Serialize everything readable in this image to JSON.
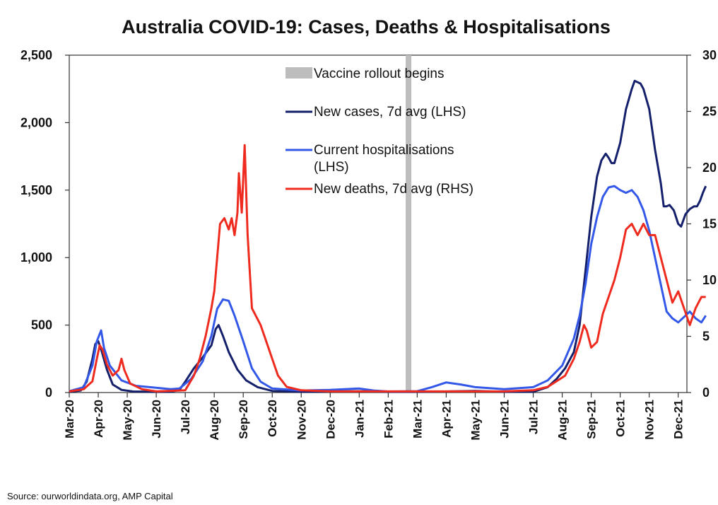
{
  "chart_data": {
    "type": "line",
    "title": "Australia COVID-19: Cases, Deaths & Hospitalisations",
    "xlabel": "",
    "ylabel_left": "",
    "ylabel_right": "",
    "x_categories": [
      "Mar-20",
      "Apr-20",
      "May-20",
      "Jun-20",
      "Jul-20",
      "Aug-20",
      "Sep-20",
      "Oct-20",
      "Nov-20",
      "Dec-20",
      "Jan-21",
      "Feb-21",
      "Mar-21",
      "Apr-21",
      "May-21",
      "Jun-21",
      "Jul-21",
      "Aug-21",
      "Sep-21",
      "Oct-21",
      "Nov-21",
      "Dec-21"
    ],
    "x_range": [
      0,
      21.3
    ],
    "ylim_left": [
      0,
      2500
    ],
    "ylim_right": [
      0,
      30
    ],
    "yticks_left": [
      "0",
      "500",
      "1,000",
      "1,500",
      "2,000",
      "2,500"
    ],
    "yticks_right": [
      "0",
      "5",
      "10",
      "15",
      "20",
      "25",
      "30"
    ],
    "grid": false,
    "legend_position": "top-center",
    "annotation": {
      "label": "Vaccine rollout begins",
      "x": 11.7,
      "color": "#bdbdbd"
    },
    "series": [
      {
        "name": "New cases, 7d avg (LHS)",
        "axis": "left",
        "color": "#14206b",
        "points": [
          [
            0,
            5
          ],
          [
            0.4,
            15
          ],
          [
            0.6,
            80
          ],
          [
            0.8,
            250
          ],
          [
            0.9,
            360
          ],
          [
            1.0,
            380
          ],
          [
            1.1,
            320
          ],
          [
            1.3,
            170
          ],
          [
            1.5,
            60
          ],
          [
            1.8,
            20
          ],
          [
            2.2,
            8
          ],
          [
            3,
            5
          ],
          [
            3.5,
            5
          ],
          [
            3.8,
            20
          ],
          [
            4.0,
            80
          ],
          [
            4.3,
            180
          ],
          [
            4.6,
            260
          ],
          [
            4.9,
            350
          ],
          [
            5.05,
            470
          ],
          [
            5.15,
            500
          ],
          [
            5.3,
            420
          ],
          [
            5.5,
            300
          ],
          [
            5.8,
            170
          ],
          [
            6.1,
            90
          ],
          [
            6.5,
            40
          ],
          [
            7,
            12
          ],
          [
            8,
            5
          ],
          [
            9,
            8
          ],
          [
            10,
            10
          ],
          [
            11,
            5
          ],
          [
            12,
            5
          ],
          [
            13,
            8
          ],
          [
            14,
            12
          ],
          [
            15,
            5
          ],
          [
            16,
            5
          ],
          [
            16.5,
            40
          ],
          [
            16.8,
            100
          ],
          [
            17.1,
            180
          ],
          [
            17.4,
            300
          ],
          [
            17.6,
            500
          ],
          [
            17.8,
            900
          ],
          [
            18.0,
            1300
          ],
          [
            18.2,
            1600
          ],
          [
            18.35,
            1720
          ],
          [
            18.5,
            1770
          ],
          [
            18.6,
            1740
          ],
          [
            18.7,
            1700
          ],
          [
            18.8,
            1700
          ],
          [
            19.0,
            1850
          ],
          [
            19.2,
            2100
          ],
          [
            19.4,
            2250
          ],
          [
            19.5,
            2310
          ],
          [
            19.6,
            2300
          ],
          [
            19.7,
            2290
          ],
          [
            19.8,
            2250
          ],
          [
            20.0,
            2100
          ],
          [
            20.2,
            1800
          ],
          [
            20.4,
            1550
          ],
          [
            20.5,
            1380
          ],
          [
            20.6,
            1380
          ],
          [
            20.7,
            1390
          ],
          [
            20.85,
            1350
          ],
          [
            21.0,
            1250
          ],
          [
            21.1,
            1230
          ],
          [
            21.25,
            1320
          ],
          [
            21.4,
            1360
          ],
          [
            21.55,
            1380
          ],
          [
            21.65,
            1380
          ],
          [
            21.75,
            1420
          ],
          [
            21.85,
            1480
          ],
          [
            21.95,
            1530
          ]
        ]
      },
      {
        "name": "Current hospitalisations (LHS)",
        "axis": "left",
        "color": "#3358e8",
        "points": [
          [
            0,
            10
          ],
          [
            0.5,
            40
          ],
          [
            0.8,
            200
          ],
          [
            0.95,
            380
          ],
          [
            1.1,
            460
          ],
          [
            1.2,
            330
          ],
          [
            1.4,
            200
          ],
          [
            1.8,
            90
          ],
          [
            2.3,
            50
          ],
          [
            3,
            35
          ],
          [
            3.5,
            25
          ],
          [
            3.8,
            30
          ],
          [
            4.2,
            100
          ],
          [
            4.6,
            230
          ],
          [
            4.9,
            420
          ],
          [
            5.1,
            620
          ],
          [
            5.3,
            690
          ],
          [
            5.5,
            680
          ],
          [
            5.7,
            570
          ],
          [
            6.0,
            380
          ],
          [
            6.3,
            180
          ],
          [
            6.6,
            80
          ],
          [
            7,
            30
          ],
          [
            8,
            15
          ],
          [
            9,
            20
          ],
          [
            10,
            30
          ],
          [
            10.5,
            15
          ],
          [
            11,
            8
          ],
          [
            12,
            10
          ],
          [
            12.5,
            40
          ],
          [
            13,
            75
          ],
          [
            13.5,
            60
          ],
          [
            14,
            40
          ],
          [
            15,
            25
          ],
          [
            16,
            40
          ],
          [
            16.5,
            90
          ],
          [
            17,
            200
          ],
          [
            17.4,
            400
          ],
          [
            17.6,
            570
          ],
          [
            17.8,
            800
          ],
          [
            18.0,
            1100
          ],
          [
            18.2,
            1300
          ],
          [
            18.4,
            1450
          ],
          [
            18.6,
            1520
          ],
          [
            18.8,
            1530
          ],
          [
            19.0,
            1500
          ],
          [
            19.2,
            1480
          ],
          [
            19.4,
            1500
          ],
          [
            19.6,
            1450
          ],
          [
            19.8,
            1350
          ],
          [
            20.0,
            1200
          ],
          [
            20.2,
            1000
          ],
          [
            20.4,
            800
          ],
          [
            20.6,
            600
          ],
          [
            20.8,
            550
          ],
          [
            21.0,
            520
          ],
          [
            21.2,
            560
          ],
          [
            21.4,
            600
          ],
          [
            21.6,
            550
          ],
          [
            21.8,
            520
          ],
          [
            21.95,
            570
          ]
        ]
      },
      {
        "name": "New deaths, 7d avg (RHS)",
        "axis": "right",
        "color": "#ee2b1e",
        "points": [
          [
            0,
            0.1
          ],
          [
            0.5,
            0.3
          ],
          [
            0.8,
            1.0
          ],
          [
            0.95,
            3.0
          ],
          [
            1.05,
            4.2
          ],
          [
            1.15,
            3.8
          ],
          [
            1.3,
            2.5
          ],
          [
            1.5,
            1.5
          ],
          [
            1.7,
            2.0
          ],
          [
            1.8,
            3.0
          ],
          [
            1.9,
            2.0
          ],
          [
            2.1,
            0.8
          ],
          [
            2.5,
            0.3
          ],
          [
            3,
            0.1
          ],
          [
            4,
            0.2
          ],
          [
            4.3,
            1.5
          ],
          [
            4.5,
            3.0
          ],
          [
            4.7,
            5.0
          ],
          [
            4.9,
            7.5
          ],
          [
            5.0,
            9.0
          ],
          [
            5.1,
            12.0
          ],
          [
            5.2,
            15.0
          ],
          [
            5.35,
            15.5
          ],
          [
            5.5,
            14.5
          ],
          [
            5.6,
            15.5
          ],
          [
            5.7,
            14.0
          ],
          [
            5.8,
            16.0
          ],
          [
            5.85,
            19.5
          ],
          [
            5.95,
            16.0
          ],
          [
            6.05,
            22.0
          ],
          [
            6.15,
            14.0
          ],
          [
            6.3,
            7.5
          ],
          [
            6.6,
            6.0
          ],
          [
            6.8,
            4.5
          ],
          [
            7.0,
            3.0
          ],
          [
            7.2,
            1.5
          ],
          [
            7.5,
            0.5
          ],
          [
            8,
            0.2
          ],
          [
            9,
            0.1
          ],
          [
            10,
            0.1
          ],
          [
            11,
            0.1
          ],
          [
            12,
            0.1
          ],
          [
            13,
            0.1
          ],
          [
            14,
            0.1
          ],
          [
            15,
            0.1
          ],
          [
            16,
            0.2
          ],
          [
            16.5,
            0.5
          ],
          [
            16.8,
            1.0
          ],
          [
            17.1,
            1.5
          ],
          [
            17.4,
            3.0
          ],
          [
            17.6,
            4.5
          ],
          [
            17.75,
            6.0
          ],
          [
            17.85,
            5.5
          ],
          [
            18.0,
            4.0
          ],
          [
            18.2,
            4.5
          ],
          [
            18.4,
            7.0
          ],
          [
            18.6,
            8.5
          ],
          [
            18.8,
            10.0
          ],
          [
            19.0,
            12.0
          ],
          [
            19.2,
            14.5
          ],
          [
            19.4,
            15.0
          ],
          [
            19.6,
            14.0
          ],
          [
            19.8,
            15.0
          ],
          [
            20.0,
            14.0
          ],
          [
            20.2,
            14.0
          ],
          [
            20.4,
            12.0
          ],
          [
            20.6,
            10.0
          ],
          [
            20.8,
            8.0
          ],
          [
            21.0,
            9.0
          ],
          [
            21.2,
            7.5
          ],
          [
            21.4,
            6.0
          ],
          [
            21.6,
            7.5
          ],
          [
            21.8,
            8.5
          ],
          [
            21.95,
            8.5
          ]
        ]
      }
    ]
  },
  "source": "Source: ourworldindata.org, AMP Capital"
}
